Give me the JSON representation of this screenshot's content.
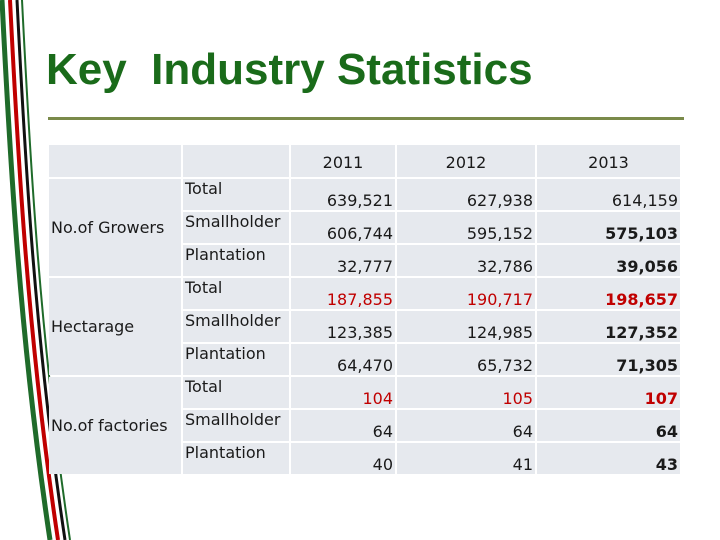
{
  "title": "Key  Industry Statistics",
  "colors": {
    "title": "#1a6b1a",
    "highlight": "#c00000",
    "cell": "#e6e9ee"
  },
  "years": [
    "2011",
    "2012",
    "2013"
  ],
  "groups": [
    {
      "label": "No.of Growers",
      "rows": [
        {
          "sub": "Total",
          "values": [
            "639,521",
            "627,938",
            "614,159"
          ]
        },
        {
          "sub": "Smallholder",
          "values": [
            "606,744",
            "595,152",
            "575,103"
          ]
        },
        {
          "sub": "Plantation",
          "values": [
            "32,777",
            "32,786",
            "39,056"
          ]
        }
      ]
    },
    {
      "label": "Hectarage",
      "rows": [
        {
          "sub": "Total",
          "values": [
            "187,855",
            "190,717",
            "198,657"
          ]
        },
        {
          "sub": "Smallholder",
          "values": [
            "123,385",
            "124,985",
            "127,352"
          ]
        },
        {
          "sub": "Plantation",
          "values": [
            "64,470",
            "65,732",
            "71,305"
          ]
        }
      ]
    },
    {
      "label": "No.of factories",
      "rows": [
        {
          "sub": "Total",
          "values": [
            "104",
            "105",
            "107"
          ]
        },
        {
          "sub": "Smallholder",
          "values": [
            "64",
            "64",
            "64"
          ]
        },
        {
          "sub": "Plantation",
          "values": [
            "40",
            "41",
            "43"
          ]
        }
      ]
    }
  ]
}
